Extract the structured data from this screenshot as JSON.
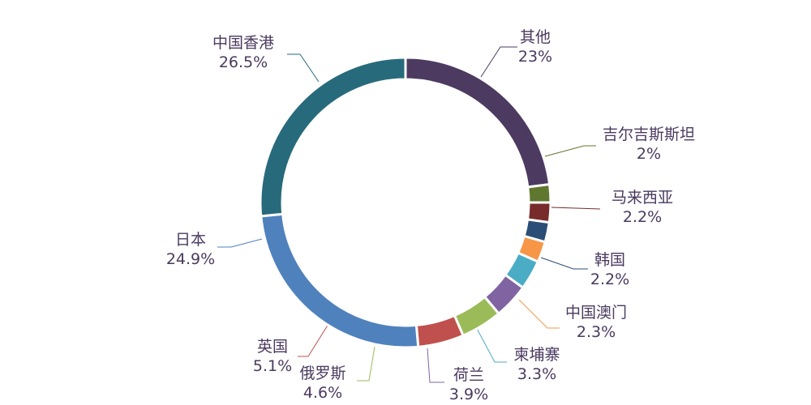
{
  "chart_data": {
    "type": "pie",
    "variant": "donut",
    "title": "",
    "start": "top",
    "direction": "clockwise",
    "legend": "none",
    "slices": [
      {
        "label": "其他",
        "value": 23,
        "display": "23%",
        "color": "#4c3a60"
      },
      {
        "label": "吉尔吉斯斯坦",
        "value": 2,
        "display": "2%",
        "color": "#5f772f"
      },
      {
        "label": "马来西亚",
        "value": 2.2,
        "display": "2.2%",
        "color": "#772c2b"
      },
      {
        "label": "韩国",
        "value": 2.2,
        "display": "2.2%",
        "color": "#2c4d75"
      },
      {
        "label": "中国澳门",
        "value": 2.3,
        "display": "2.3%",
        "color": "#f79646"
      },
      {
        "label": "柬埔寨",
        "value": 3.3,
        "display": "3.3%",
        "color": "#4bacc6"
      },
      {
        "label": "荷兰",
        "value": 3.9,
        "display": "3.9%",
        "color": "#8064a2"
      },
      {
        "label": "俄罗斯",
        "value": 4.6,
        "display": "4.6%",
        "color": "#9bbb59"
      },
      {
        "label": "英国",
        "value": 5.1,
        "display": "5.1%",
        "color": "#c0504d"
      },
      {
        "label": "日本",
        "value": 24.9,
        "display": "24.9%",
        "color": "#4f81bd"
      },
      {
        "label": "中国香港",
        "value": 26.5,
        "display": "26.5%",
        "color": "#276a7b"
      }
    ]
  }
}
